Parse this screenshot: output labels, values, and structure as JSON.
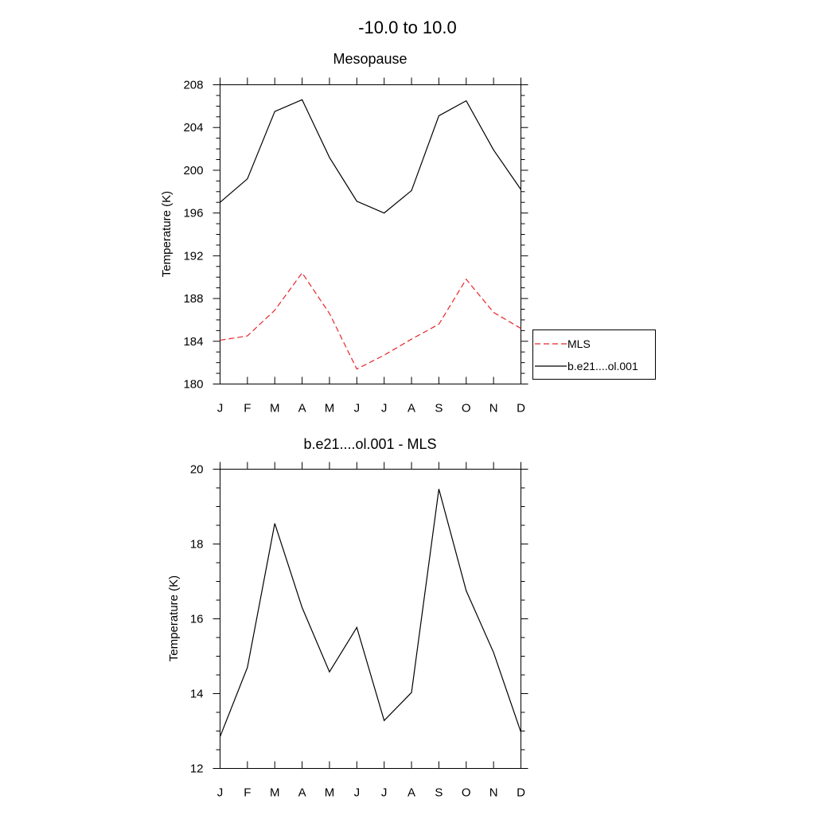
{
  "main_title": "-10.0 to  10.0",
  "chart_data": [
    {
      "type": "line",
      "title": "Mesopause",
      "xlabel": "",
      "ylabel": "Temperature (K)",
      "categories": [
        "J",
        "F",
        "M",
        "A",
        "M",
        "J",
        "J",
        "A",
        "S",
        "O",
        "N",
        "D"
      ],
      "ylim": [
        180,
        208
      ],
      "yticks": [
        180,
        184,
        188,
        192,
        196,
        200,
        204,
        208
      ],
      "series": [
        {
          "name": "MLS",
          "color": "#e8252a",
          "dash": "dashed",
          "values": [
            184.1,
            184.5,
            186.9,
            190.4,
            186.6,
            181.4,
            182.7,
            184.2,
            185.6,
            189.8,
            186.7,
            185.2
          ]
        },
        {
          "name": "b.e21....ol.001",
          "color": "#000000",
          "dash": "solid",
          "values": [
            197.0,
            199.2,
            205.5,
            206.6,
            201.2,
            197.1,
            196.0,
            198.1,
            205.1,
            206.5,
            201.9,
            198.2
          ]
        }
      ],
      "legend_position": "right"
    },
    {
      "type": "line",
      "title": "b.e21....ol.001 - MLS",
      "xlabel": "",
      "ylabel": "Temperature (K)",
      "categories": [
        "J",
        "F",
        "M",
        "A",
        "M",
        "J",
        "J",
        "A",
        "S",
        "O",
        "N",
        "D"
      ],
      "ylim": [
        12,
        20
      ],
      "yticks": [
        12,
        14,
        16,
        18,
        20
      ],
      "series": [
        {
          "color": "#000000",
          "dash": "solid",
          "values": [
            12.85,
            14.7,
            18.55,
            16.3,
            14.58,
            15.77,
            13.28,
            14.03,
            19.47,
            16.75,
            15.1,
            12.97
          ]
        }
      ]
    }
  ]
}
